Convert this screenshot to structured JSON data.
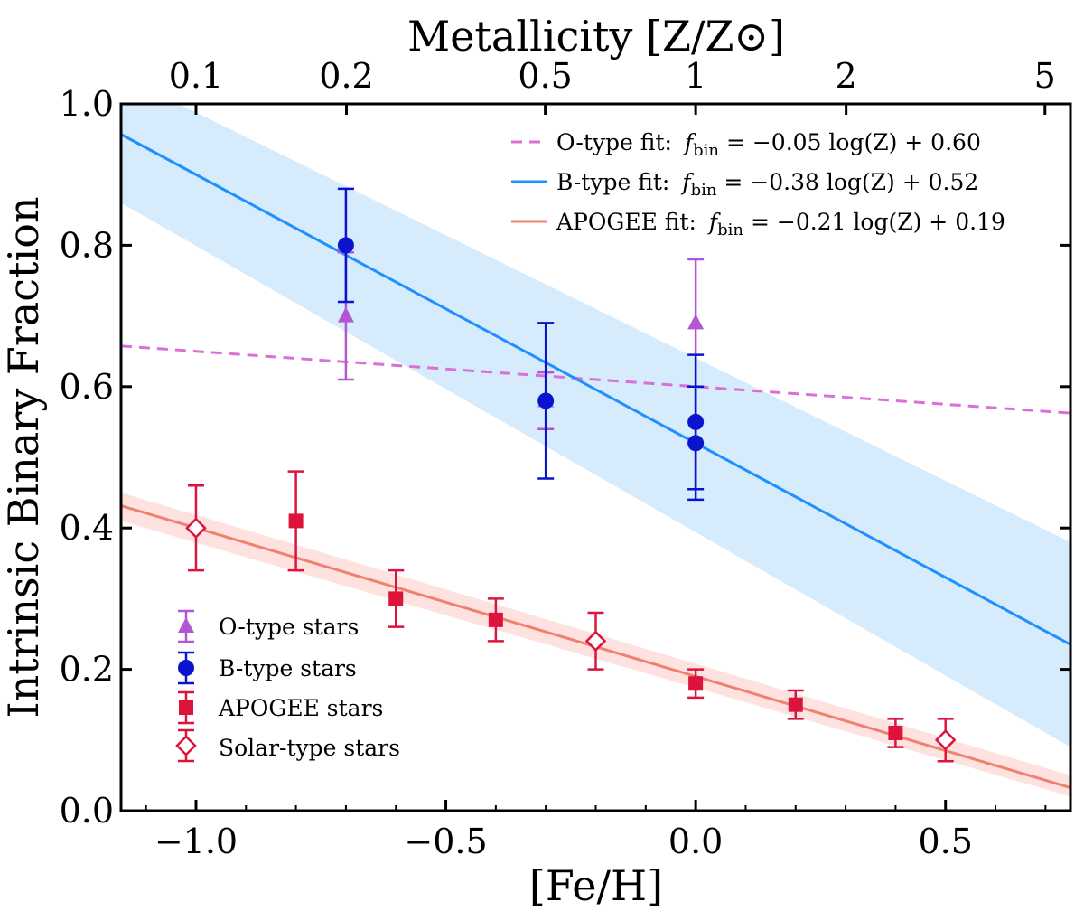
{
  "chart_data": {
    "type": "scatter",
    "title": "",
    "xlabel": "[Fe/H]",
    "ylabel": "Intrinsic Binary Fraction",
    "top_xlabel": "Metallicity [Z/Z⊙]",
    "xlim": [
      -1.15,
      0.75
    ],
    "ylim": [
      0.0,
      1.0
    ],
    "grid": false,
    "xticks": [
      {
        "value": -1.0,
        "label": "−1.0"
      },
      {
        "value": -0.5,
        "label": "−0.5"
      },
      {
        "value": 0.0,
        "label": "0.0"
      },
      {
        "value": 0.5,
        "label": "0.5"
      }
    ],
    "yticks": [
      {
        "value": 0.0,
        "label": "0.0"
      },
      {
        "value": 0.2,
        "label": "0.2"
      },
      {
        "value": 0.4,
        "label": "0.4"
      },
      {
        "value": 0.6,
        "label": "0.6"
      },
      {
        "value": 0.8,
        "label": "0.8"
      },
      {
        "value": 1.0,
        "label": "1.0"
      }
    ],
    "top_ticks": [
      {
        "z": 0.1,
        "label": "0.1"
      },
      {
        "z": 0.2,
        "label": "0.2"
      },
      {
        "z": 0.5,
        "label": "0.5"
      },
      {
        "z": 1,
        "label": "1"
      },
      {
        "z": 2,
        "label": "2"
      },
      {
        "z": 5,
        "label": "5"
      }
    ],
    "fits": [
      {
        "name": "O-type fit",
        "slope": -0.05,
        "intercept": 0.6,
        "color": "#da70d6",
        "dashed": true,
        "label": "O-type fit:",
        "formula_f": "f",
        "formula_sub": "bin",
        "formula_rest": " = −0.05 log(Z) + 0.60"
      },
      {
        "name": "B-type fit",
        "slope": -0.38,
        "intercept": 0.52,
        "color": "#1e90ff",
        "dashed": false,
        "band_low": {
          "at_xmin": 0.86,
          "at_xmax": 0.09
        },
        "band_high": {
          "at_xmin": 1.04,
          "at_xmax": 0.38
        },
        "band_color": "#d6ebfb",
        "label": "B-type fit:",
        "formula_f": "f",
        "formula_sub": "bin",
        "formula_rest": " = −0.38 log(Z) + 0.52"
      },
      {
        "name": "APOGEE fit",
        "slope": -0.21,
        "intercept": 0.19,
        "color": "#f08070",
        "dashed": false,
        "band_low": {
          "at_xmin": 0.41,
          "at_xmax": 0.02
        },
        "band_high": {
          "at_xmin": 0.45,
          "at_xmax": 0.05
        },
        "band_color": "#fde2e0",
        "label": "APOGEE fit:",
        "formula_f": "f",
        "formula_sub": "bin",
        "formula_rest": " = −0.21 log(Z) + 0.19"
      }
    ],
    "series": [
      {
        "name": "O-type stars",
        "marker": "triangle",
        "color": "#b455d4",
        "points": [
          {
            "x": -0.7,
            "y": 0.7,
            "err_low": 0.61,
            "err_high": 0.79
          },
          {
            "x": -0.3,
            "y": 0.58,
            "err_low": 0.54,
            "err_high": 0.62
          },
          {
            "x": 0.0,
            "y": 0.69,
            "err_low": 0.6,
            "err_high": 0.78
          }
        ]
      },
      {
        "name": "B-type stars",
        "marker": "circle",
        "color": "#0a14cc",
        "points": [
          {
            "x": -0.7,
            "y": 0.8,
            "err_low": 0.72,
            "err_high": 0.88
          },
          {
            "x": -0.3,
            "y": 0.58,
            "err_low": 0.47,
            "err_high": 0.69
          },
          {
            "x": 0.0,
            "y": 0.55,
            "err_low": 0.455,
            "err_high": 0.645
          },
          {
            "x": 0.0,
            "y": 0.52,
            "err_low": 0.44,
            "err_high": 0.6
          }
        ]
      },
      {
        "name": "APOGEE stars",
        "marker": "square",
        "color": "#dc143c",
        "points": [
          {
            "x": -0.8,
            "y": 0.41,
            "err_low": 0.34,
            "err_high": 0.48
          },
          {
            "x": -0.6,
            "y": 0.3,
            "err_low": 0.26,
            "err_high": 0.34
          },
          {
            "x": -0.4,
            "y": 0.27,
            "err_low": 0.24,
            "err_high": 0.3
          },
          {
            "x": 0.0,
            "y": 0.18,
            "err_low": 0.16,
            "err_high": 0.2
          },
          {
            "x": 0.2,
            "y": 0.15,
            "err_low": 0.13,
            "err_high": 0.17
          },
          {
            "x": 0.4,
            "y": 0.11,
            "err_low": 0.09,
            "err_high": 0.13
          }
        ]
      },
      {
        "name": "Solar-type stars",
        "marker": "diamond-open",
        "color": "#dc143c",
        "points": [
          {
            "x": -1.0,
            "y": 0.4,
            "err_low": 0.34,
            "err_high": 0.46
          },
          {
            "x": -0.2,
            "y": 0.24,
            "err_low": 0.2,
            "err_high": 0.28
          },
          {
            "x": 0.5,
            "y": 0.1,
            "err_low": 0.07,
            "err_high": 0.13
          }
        ]
      }
    ],
    "fit_legend_position": "top-right",
    "points_legend_position": "bottom-left"
  }
}
